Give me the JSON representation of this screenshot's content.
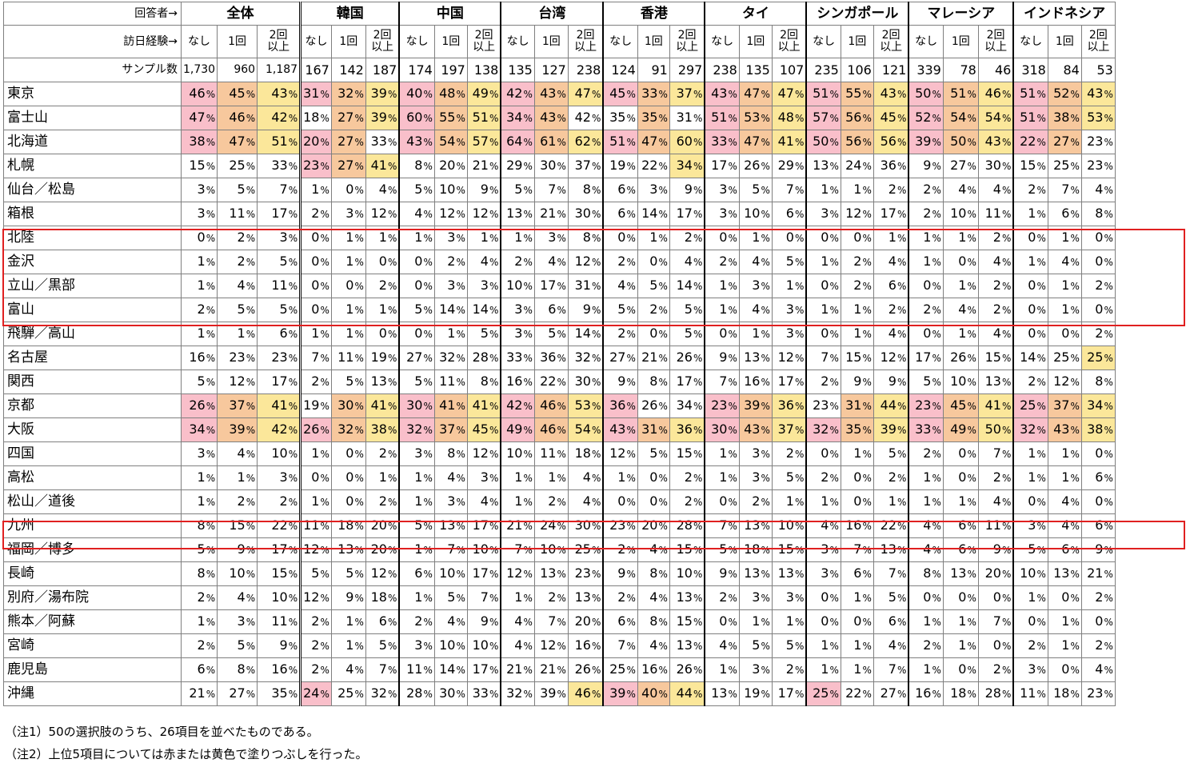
{
  "header": {
    "respondent_label": "回答者→",
    "experience_label": "訪日経験→",
    "sample_label": "サンプル数",
    "groups": [
      "全体",
      "韓国",
      "中国",
      "台湾",
      "香港",
      "タイ",
      "シンガポール",
      "マレーシア",
      "インドネシア"
    ],
    "sub_labels": [
      "なし",
      "1回",
      "2回\n以上"
    ]
  },
  "sample_counts": [
    [
      "1,730",
      "960",
      "1,187"
    ],
    [
      "167",
      "142",
      "187"
    ],
    [
      "174",
      "197",
      "138"
    ],
    [
      "135",
      "127",
      "238"
    ],
    [
      "124",
      "91",
      "297"
    ],
    [
      "238",
      "135",
      "107"
    ],
    [
      "235",
      "106",
      "121"
    ],
    [
      "339",
      "78",
      "46"
    ],
    [
      "318",
      "84",
      "53"
    ]
  ],
  "rows": [
    {
      "label": "東京",
      "values": [
        46,
        45,
        43,
        31,
        32,
        39,
        40,
        48,
        49,
        42,
        43,
        47,
        45,
        33,
        37,
        43,
        47,
        47,
        51,
        55,
        43,
        50,
        51,
        46,
        51,
        52,
        43
      ],
      "colors": "roy roy roy roy roy roy roy roy roy"
    },
    {
      "label": "富士山",
      "values": [
        47,
        46,
        42,
        18,
        27,
        39,
        60,
        55,
        51,
        34,
        43,
        42,
        35,
        35,
        31,
        51,
        53,
        48,
        57,
        56,
        45,
        52,
        54,
        54,
        51,
        38,
        53
      ],
      "colors": "roy _oy roy ro_ _o_ roy roy roy roy"
    },
    {
      "label": "北海道",
      "values": [
        38,
        47,
        51,
        20,
        27,
        33,
        43,
        54,
        57,
        64,
        61,
        62,
        51,
        47,
        60,
        33,
        47,
        41,
        50,
        56,
        56,
        39,
        50,
        43,
        22,
        27,
        23
      ],
      "colors": "roy ro_ roy roy roy roy roy roy ro_"
    },
    {
      "label": "札幌",
      "values": [
        15,
        25,
        33,
        23,
        27,
        41,
        8,
        20,
        21,
        29,
        30,
        37,
        19,
        22,
        34,
        17,
        26,
        29,
        13,
        24,
        36,
        9,
        27,
        30,
        15,
        25,
        23
      ],
      "colors": "___ roy ___ ___ __y ___ ___ ___ ___"
    },
    {
      "label": "仙台／松島",
      "values": [
        3,
        5,
        7,
        1,
        0,
        4,
        5,
        10,
        9,
        5,
        7,
        8,
        6,
        3,
        9,
        3,
        5,
        7,
        1,
        1,
        2,
        2,
        4,
        4,
        2,
        7,
        4
      ],
      "colors": "___ ___ ___ ___ ___ ___ ___ ___ ___"
    },
    {
      "label": "箱根",
      "values": [
        3,
        11,
        17,
        2,
        3,
        12,
        4,
        12,
        12,
        13,
        21,
        30,
        6,
        14,
        17,
        3,
        10,
        6,
        3,
        12,
        17,
        2,
        10,
        11,
        1,
        6,
        8
      ],
      "colors": "___ ___ ___ ___ ___ ___ ___ ___ ___"
    },
    {
      "label": "北陸",
      "values": [
        0,
        2,
        3,
        0,
        1,
        1,
        1,
        3,
        1,
        1,
        3,
        8,
        0,
        1,
        2,
        0,
        1,
        0,
        0,
        0,
        1,
        1,
        1,
        2,
        0,
        1,
        0
      ],
      "colors": "___ ___ ___ ___ ___ ___ ___ ___ ___"
    },
    {
      "label": "金沢",
      "values": [
        1,
        2,
        5,
        0,
        1,
        0,
        0,
        2,
        4,
        2,
        4,
        12,
        2,
        0,
        4,
        2,
        4,
        5,
        1,
        2,
        4,
        1,
        0,
        4,
        1,
        4,
        0
      ],
      "colors": "___ ___ ___ ___ ___ ___ ___ ___ ___"
    },
    {
      "label": "立山／黒部",
      "values": [
        1,
        4,
        11,
        0,
        0,
        2,
        0,
        3,
        3,
        10,
        17,
        31,
        4,
        5,
        14,
        1,
        3,
        1,
        0,
        2,
        6,
        0,
        1,
        2,
        0,
        1,
        2
      ],
      "colors": "___ ___ ___ ___ ___ ___ ___ ___ ___"
    },
    {
      "label": "富山",
      "values": [
        2,
        5,
        5,
        0,
        1,
        1,
        5,
        14,
        14,
        3,
        6,
        9,
        5,
        2,
        5,
        1,
        4,
        3,
        1,
        1,
        2,
        2,
        4,
        2,
        0,
        1,
        0
      ],
      "colors": "___ ___ ___ ___ ___ ___ ___ ___ ___"
    },
    {
      "label": "飛騨／高山",
      "values": [
        1,
        1,
        6,
        1,
        1,
        0,
        0,
        1,
        5,
        3,
        5,
        14,
        2,
        0,
        5,
        0,
        1,
        3,
        0,
        1,
        4,
        0,
        1,
        4,
        0,
        0,
        2
      ],
      "colors": "___ ___ ___ ___ ___ ___ ___ ___ ___"
    },
    {
      "label": "名古屋",
      "values": [
        16,
        23,
        23,
        7,
        11,
        19,
        27,
        32,
        28,
        33,
        36,
        32,
        27,
        21,
        26,
        9,
        13,
        12,
        7,
        15,
        12,
        17,
        26,
        15,
        14,
        25,
        25
      ],
      "colors": "___ ___ ___ ___ ___ ___ ___ ___ __y"
    },
    {
      "label": "関西",
      "values": [
        5,
        12,
        17,
        2,
        5,
        13,
        5,
        11,
        8,
        16,
        22,
        30,
        9,
        8,
        17,
        7,
        16,
        17,
        2,
        9,
        9,
        5,
        10,
        13,
        2,
        12,
        8
      ],
      "colors": "___ ___ ___ ___ ___ ___ ___ ___ ___"
    },
    {
      "label": "京都",
      "values": [
        26,
        37,
        41,
        19,
        30,
        41,
        30,
        41,
        41,
        42,
        46,
        53,
        36,
        26,
        34,
        23,
        39,
        36,
        23,
        31,
        44,
        23,
        45,
        41,
        25,
        37,
        34
      ],
      "colors": "roy _oy roy roy r__ roy _oy roy roy"
    },
    {
      "label": "大阪",
      "values": [
        34,
        39,
        42,
        26,
        32,
        38,
        32,
        37,
        45,
        49,
        46,
        54,
        43,
        31,
        36,
        30,
        43,
        37,
        32,
        35,
        39,
        33,
        49,
        50,
        32,
        43,
        38
      ],
      "colors": "roy roy roy roy roy roy roy roy roy"
    },
    {
      "label": "四国",
      "values": [
        3,
        4,
        10,
        1,
        0,
        2,
        3,
        8,
        12,
        10,
        11,
        18,
        12,
        5,
        15,
        1,
        3,
        2,
        0,
        1,
        5,
        2,
        0,
        7,
        1,
        1,
        0
      ],
      "colors": "___ ___ ___ ___ ___ ___ ___ ___ ___"
    },
    {
      "label": "高松",
      "values": [
        1,
        1,
        3,
        0,
        0,
        1,
        1,
        4,
        3,
        1,
        1,
        4,
        1,
        0,
        2,
        1,
        3,
        5,
        2,
        0,
        2,
        1,
        0,
        2,
        1,
        1,
        6
      ],
      "colors": "___ ___ ___ ___ ___ ___ ___ ___ ___"
    },
    {
      "label": "松山／道後",
      "values": [
        1,
        2,
        2,
        1,
        0,
        2,
        1,
        3,
        4,
        1,
        2,
        4,
        0,
        0,
        2,
        0,
        2,
        1,
        1,
        0,
        1,
        1,
        1,
        4,
        0,
        4,
        0
      ],
      "colors": "___ ___ ___ ___ ___ ___ ___ ___ ___"
    },
    {
      "label": "九州",
      "values": [
        8,
        15,
        22,
        11,
        18,
        20,
        5,
        13,
        17,
        21,
        24,
        30,
        23,
        20,
        28,
        7,
        13,
        10,
        4,
        16,
        22,
        4,
        6,
        11,
        3,
        4,
        6
      ],
      "colors": "___ ___ ___ ___ ___ ___ ___ ___ ___"
    },
    {
      "label": "福岡／博多",
      "values": [
        5,
        9,
        17,
        12,
        13,
        20,
        1,
        7,
        10,
        7,
        10,
        25,
        2,
        4,
        15,
        5,
        18,
        15,
        3,
        7,
        13,
        4,
        6,
        9,
        5,
        6,
        9
      ],
      "colors": "___ ___ ___ ___ ___ ___ ___ ___ ___"
    },
    {
      "label": "長崎",
      "values": [
        8,
        10,
        15,
        5,
        5,
        12,
        6,
        10,
        17,
        12,
        13,
        23,
        9,
        8,
        10,
        9,
        13,
        13,
        3,
        6,
        7,
        8,
        13,
        20,
        10,
        13,
        21
      ],
      "colors": "___ ___ ___ ___ ___ ___ ___ ___ ___"
    },
    {
      "label": "別府／湯布院",
      "values": [
        2,
        4,
        10,
        12,
        9,
        18,
        1,
        5,
        7,
        1,
        2,
        13,
        2,
        4,
        13,
        2,
        3,
        3,
        0,
        1,
        5,
        0,
        0,
        0,
        1,
        0,
        2
      ],
      "colors": "___ ___ ___ ___ ___ ___ ___ ___ ___"
    },
    {
      "label": "熊本／阿蘇",
      "values": [
        1,
        3,
        11,
        2,
        1,
        6,
        2,
        4,
        9,
        4,
        7,
        20,
        6,
        8,
        15,
        0,
        1,
        1,
        0,
        0,
        6,
        1,
        1,
        7,
        0,
        1,
        0
      ],
      "colors": "___ ___ ___ ___ ___ ___ ___ ___ ___"
    },
    {
      "label": "宮崎",
      "values": [
        2,
        5,
        9,
        2,
        1,
        5,
        3,
        10,
        10,
        4,
        12,
        16,
        7,
        4,
        13,
        4,
        5,
        5,
        1,
        1,
        4,
        2,
        1,
        0,
        2,
        1,
        2
      ],
      "colors": "___ ___ ___ ___ ___ ___ ___ ___ ___"
    },
    {
      "label": "鹿児島",
      "values": [
        6,
        8,
        16,
        2,
        4,
        7,
        11,
        14,
        17,
        21,
        21,
        26,
        25,
        16,
        26,
        1,
        3,
        2,
        1,
        1,
        7,
        1,
        0,
        2,
        3,
        0,
        4
      ],
      "colors": "___ ___ ___ ___ ___ ___ ___ ___ ___"
    },
    {
      "label": "沖縄",
      "values": [
        21,
        27,
        35,
        24,
        25,
        32,
        28,
        30,
        33,
        32,
        39,
        46,
        39,
        40,
        44,
        13,
        19,
        17,
        25,
        22,
        27,
        16,
        18,
        28,
        11,
        18,
        23
      ],
      "colors": "___ r__ ___ __y roy ___ r__ ___ ___"
    }
  ],
  "percent_sign": "%",
  "notes": [
    "（注1）50の選択肢のうち、26項目を並べたものである。",
    "（注2）上位5項目については赤または黄色で塗りつぶしを行った。"
  ],
  "colors": {
    "red": "#f9bfca",
    "orange": "#f7c89d",
    "yellow": "#fbe79a",
    "highlight_box": "#e02020"
  }
}
